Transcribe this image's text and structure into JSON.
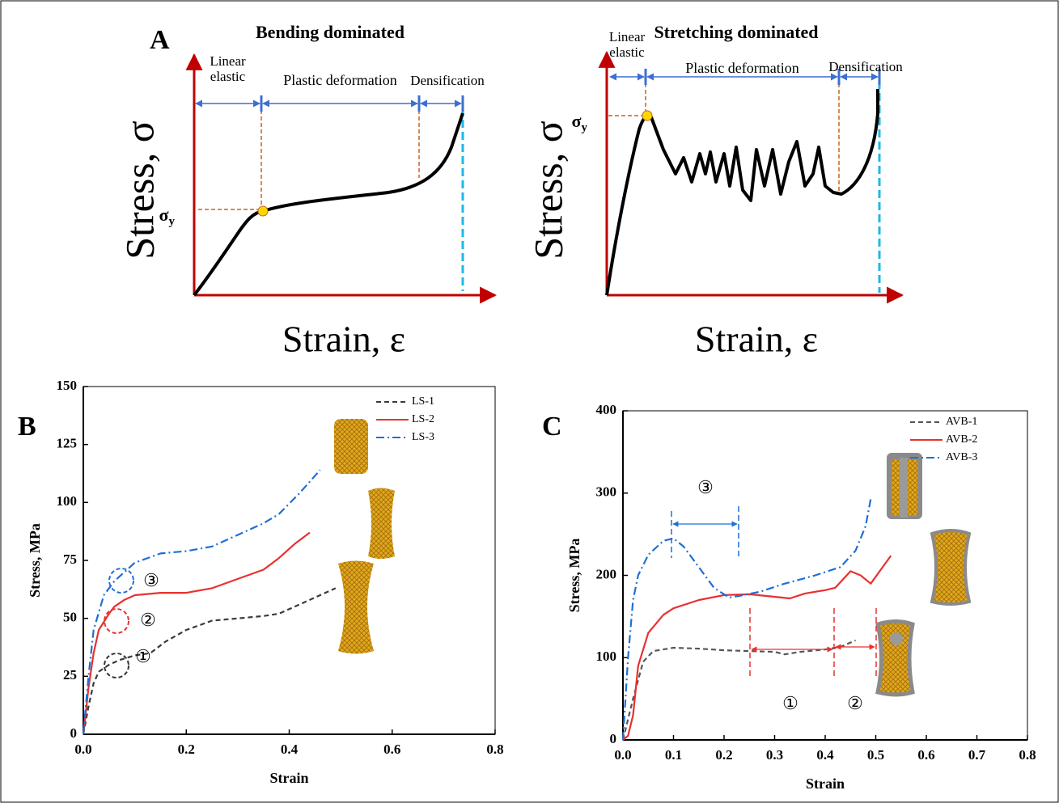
{
  "panel_labels": [
    "A",
    "B",
    "C"
  ],
  "schematics": [
    {
      "title": "Bending dominated",
      "y_label": "Stress, σ",
      "x_label": "Strain, ε",
      "yield_label": {
        "symbol": "σ",
        "subscript": "y"
      },
      "regions": {
        "linear_elastic": [
          "Linear",
          "elastic"
        ],
        "plastic": "Plastic deformation",
        "densification": "Densification"
      }
    },
    {
      "title": "Stretching dominated",
      "y_label": "Stress, σ",
      "x_label": "Strain, ε",
      "yield_label": {
        "symbol": "σ",
        "subscript": "y"
      },
      "regions": {
        "linear_elastic": [
          "Linear",
          "elastic"
        ],
        "plastic": "Plastic deformation",
        "densification": "Densification"
      }
    }
  ],
  "chart_data": [
    {
      "type": "line",
      "x_label": "Strain",
      "y_label": "Stress, MPa",
      "xlim": [
        0,
        0.8
      ],
      "ylim": [
        0,
        150
      ],
      "xticks": [
        {
          "value": 0,
          "label": "0.0"
        },
        0.2,
        0.4,
        0.6,
        0.8
      ],
      "yticks": [
        0,
        25,
        50,
        75,
        100,
        125,
        150
      ],
      "legend": "top-right",
      "annotations": [
        "①",
        "②",
        "③"
      ],
      "series": [
        {
          "name": "LS-1",
          "color": "#3a3a3a",
          "line_style": "dashed",
          "x": [
            0,
            0.01,
            0.02,
            0.03,
            0.05,
            0.07,
            0.1,
            0.13,
            0.16,
            0.2,
            0.25,
            0.3,
            0.35,
            0.38,
            0.42,
            0.46,
            0.49
          ],
          "values": [
            0,
            12,
            22,
            27,
            30,
            32,
            34,
            35,
            40,
            45,
            49,
            50,
            51,
            52,
            56,
            60,
            63
          ]
        },
        {
          "name": "LS-2",
          "color": "#e8312f",
          "line_style": "solid",
          "x": [
            0,
            0.01,
            0.02,
            0.03,
            0.05,
            0.06,
            0.08,
            0.1,
            0.15,
            0.2,
            0.25,
            0.3,
            0.35,
            0.38,
            0.41,
            0.44
          ],
          "values": [
            0,
            20,
            35,
            45,
            52,
            55,
            58,
            60,
            61,
            61,
            63,
            67,
            71,
            76,
            82,
            87
          ]
        },
        {
          "name": "LS-3",
          "color": "#1f6fd6",
          "line_style": "dashdot",
          "x": [
            0,
            0.01,
            0.02,
            0.04,
            0.06,
            0.08,
            0.1,
            0.15,
            0.2,
            0.25,
            0.3,
            0.35,
            0.38,
            0.42,
            0.46
          ],
          "values": [
            0,
            25,
            45,
            60,
            66,
            70,
            74,
            78,
            79,
            81,
            86,
            91,
            95,
            104,
            114
          ]
        }
      ]
    },
    {
      "type": "line",
      "x_label": "Strain",
      "y_label": "Stress, MPa",
      "xlim": [
        0,
        0.8
      ],
      "ylim": [
        0,
        400
      ],
      "xticks": [
        {
          "value": 0,
          "label": "0.0"
        },
        0.1,
        0.2,
        0.3,
        0.4,
        0.5,
        0.6,
        0.7,
        0.8
      ],
      "yticks": [
        0,
        100,
        200,
        300,
        400
      ],
      "legend": "top-right",
      "annotations": [
        "③",
        "①",
        "②"
      ],
      "series": [
        {
          "name": "AVB-1",
          "color": "#555555",
          "line_style": "dashed",
          "x": [
            0,
            0.02,
            0.04,
            0.06,
            0.1,
            0.15,
            0.2,
            0.25,
            0.3,
            0.32,
            0.35,
            0.4,
            0.43,
            0.46
          ],
          "values": [
            0,
            50,
            95,
            108,
            112,
            111,
            109,
            108,
            107,
            104,
            107,
            110,
            113,
            121
          ]
        },
        {
          "name": "AVB-2",
          "color": "#e8312f",
          "line_style": "solid",
          "x": [
            0,
            0.01,
            0.02,
            0.03,
            0.05,
            0.08,
            0.1,
            0.15,
            0.2,
            0.25,
            0.3,
            0.33,
            0.36,
            0.4,
            0.42,
            0.45,
            0.47,
            0.49,
            0.51,
            0.53
          ],
          "values": [
            0,
            5,
            30,
            90,
            130,
            152,
            160,
            170,
            176,
            177,
            174,
            172,
            178,
            182,
            185,
            205,
            200,
            190,
            207,
            224
          ]
        },
        {
          "name": "AVB-3",
          "color": "#1f6fd6",
          "line_style": "dashdot",
          "x": [
            0,
            0.01,
            0.02,
            0.03,
            0.05,
            0.08,
            0.1,
            0.12,
            0.15,
            0.18,
            0.21,
            0.23,
            0.27,
            0.32,
            0.38,
            0.43,
            0.46,
            0.48,
            0.49
          ],
          "values": [
            0,
            100,
            170,
            200,
            225,
            242,
            245,
            235,
            210,
            185,
            173,
            175,
            180,
            190,
            200,
            210,
            230,
            260,
            293
          ]
        }
      ]
    }
  ]
}
